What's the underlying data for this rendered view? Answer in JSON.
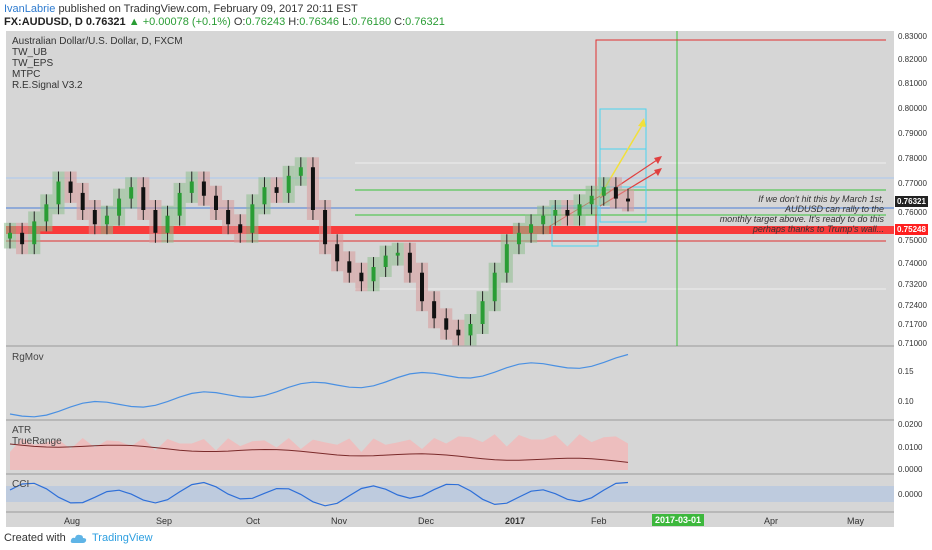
{
  "header": {
    "user": "IvanLabrie",
    "published": "published on TradingView.com, February 09, 2017 20:11 EST",
    "symbol": "FX:AUDUSD, D",
    "last": "0.76321",
    "change_arrow": "▲",
    "change": "+0.00078 (+0.1%)",
    "o_label": "O:",
    "o_value": "0.76243",
    "h_label": "H:",
    "h_value": "0.76346",
    "l_label": "L:",
    "l_value": "0.76180",
    "c_label": "C:",
    "c_value": "0.76321"
  },
  "main": {
    "title": "Australian Dollar/U.S. Dollar, D, FXCM",
    "studies": [
      "TW_UB",
      "TW_EPS",
      "MTPC",
      "R.E.Signal V3.2"
    ],
    "price_ticks": [
      "0.83000",
      "0.82000",
      "0.81000",
      "0.80000",
      "0.79000",
      "0.78000",
      "0.77000",
      "0.76000",
      "0.75000",
      "0.74000",
      "0.73200",
      "0.72400",
      "0.71700",
      "0.71000"
    ],
    "last_price_tag": "0.76321",
    "support_tag": "0.75248",
    "annotation": [
      "If we don't hit this by March 1st,",
      "AUDUSD can rally to the",
      "monthly target above. It's ready to do this",
      "perhaps thanks to Trump's wall..."
    ]
  },
  "panes": {
    "rgmov": {
      "label": "RgMov",
      "ticks": [
        "0.15",
        "0.10"
      ]
    },
    "atr": {
      "label1": "ATR",
      "label2": "TrueRange",
      "ticks": [
        "0.0200",
        "0.0100",
        "0.0000"
      ]
    },
    "cci": {
      "label": "CCI",
      "ticks": [
        "0.0000"
      ]
    }
  },
  "x_axis": {
    "labels": [
      "Aug",
      "Sep",
      "Oct",
      "Nov",
      "Dec",
      "2017",
      "Feb",
      "Apr",
      "May"
    ],
    "badge": "2017-03-01"
  },
  "footer": {
    "created": "Created with",
    "brand": "TradingView"
  },
  "colors": {
    "bull": "#2a9d35",
    "bear": "#e03030",
    "accent": "#2e7bcf",
    "support": "#ff2020"
  },
  "chart_data": {
    "type": "candlestick",
    "symbol": "AUDUSD",
    "timeframe": "D",
    "x_labels": [
      "Aug",
      "Sep",
      "Oct",
      "Nov",
      "Dec",
      "2017",
      "Feb",
      "2017-03-01",
      "Apr",
      "May"
    ],
    "ylim": [
      0.71,
      0.83
    ],
    "close_path": [
      0.752,
      0.748,
      0.756,
      0.762,
      0.77,
      0.766,
      0.76,
      0.755,
      0.758,
      0.764,
      0.768,
      0.76,
      0.752,
      0.758,
      0.766,
      0.77,
      0.765,
      0.76,
      0.755,
      0.752,
      0.762,
      0.768,
      0.766,
      0.772,
      0.775,
      0.76,
      0.748,
      0.742,
      0.738,
      0.735,
      0.74,
      0.744,
      0.745,
      0.738,
      0.728,
      0.722,
      0.718,
      0.716,
      0.72,
      0.728,
      0.738,
      0.748,
      0.752,
      0.755,
      0.758,
      0.76,
      0.758,
      0.762,
      0.765,
      0.768,
      0.764,
      0.763
    ],
    "current_close": 0.76321,
    "support_level": 0.75248,
    "monthly_target": 0.829
  }
}
